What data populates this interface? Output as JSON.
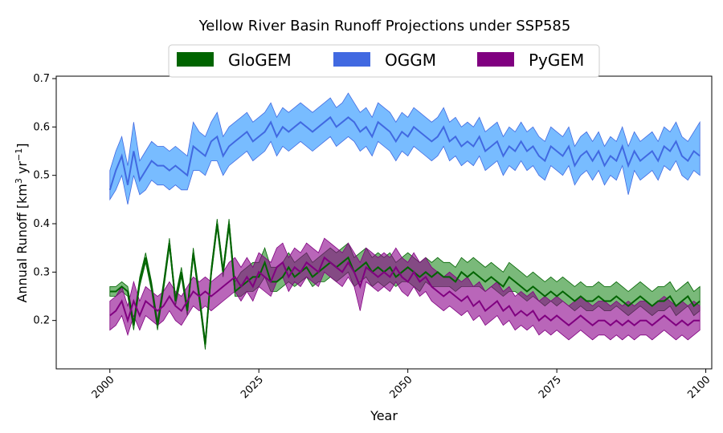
{
  "chart_data": {
    "type": "line",
    "title": "Yellow River Basin Runoff Projections under SSP585",
    "xlabel": "Year",
    "ylabel": "Annual Runoff [km³ yr⁻¹]",
    "ylabel_parts": {
      "main": "Annual Runoff [km",
      "sup1": "3",
      "mid": " yr",
      "sup2": "−1",
      "end": "]"
    },
    "xlim": [
      1991,
      2101
    ],
    "ylim": [
      0.1,
      0.705
    ],
    "x_ticks": [
      2000,
      2025,
      2050,
      2075,
      2100
    ],
    "x_tick_labels": [
      "2000",
      "2025",
      "2050",
      "2075",
      "2100"
    ],
    "y_ticks": [
      0.2,
      0.3,
      0.4,
      0.5,
      0.6,
      0.7
    ],
    "y_tick_labels": [
      "0.2",
      "0.3",
      "0.4",
      "0.5",
      "0.6",
      "0.7"
    ],
    "grid": false,
    "legend_position": "top-center",
    "legend": [
      "GloGEM",
      "OGGM",
      "PyGEM"
    ],
    "colors": {
      "GloGEM_line": "#006400",
      "GloGEM_fill": "#228B22",
      "OGGM_line": "#4169E1",
      "OGGM_fill": "#1E90FF",
      "PyGEM_line": "#800080",
      "PyGEM_fill": "#8B008B"
    },
    "x_start": 2000,
    "x_end": 2099,
    "series": [
      {
        "name": "GloGEM",
        "values": [
          0.26,
          0.26,
          0.27,
          0.26,
          0.19,
          0.28,
          0.33,
          0.27,
          0.19,
          0.27,
          0.36,
          0.24,
          0.3,
          0.22,
          0.34,
          0.25,
          0.15,
          0.3,
          0.4,
          0.3,
          0.4,
          0.26,
          0.27,
          0.28,
          0.29,
          0.29,
          0.32,
          0.28,
          0.28,
          0.29,
          0.31,
          0.29,
          0.3,
          0.31,
          0.29,
          0.3,
          0.31,
          0.32,
          0.31,
          0.32,
          0.33,
          0.3,
          0.31,
          0.32,
          0.3,
          0.31,
          0.3,
          0.31,
          0.29,
          0.3,
          0.31,
          0.3,
          0.29,
          0.3,
          0.29,
          0.3,
          0.29,
          0.29,
          0.28,
          0.3,
          0.29,
          0.3,
          0.29,
          0.28,
          0.29,
          0.28,
          0.27,
          0.29,
          0.28,
          0.27,
          0.26,
          0.27,
          0.26,
          0.25,
          0.26,
          0.25,
          0.26,
          0.25,
          0.24,
          0.25,
          0.24,
          0.24,
          0.25,
          0.24,
          0.24,
          0.25,
          0.24,
          0.23,
          0.24,
          0.25,
          0.24,
          0.23,
          0.24,
          0.24,
          0.25,
          0.23,
          0.24,
          0.25,
          0.23,
          0.24
        ],
        "lower": [
          0.25,
          0.25,
          0.26,
          0.25,
          0.18,
          0.27,
          0.32,
          0.26,
          0.18,
          0.26,
          0.35,
          0.23,
          0.29,
          0.21,
          0.33,
          0.24,
          0.14,
          0.29,
          0.39,
          0.29,
          0.39,
          0.25,
          0.25,
          0.26,
          0.26,
          0.27,
          0.29,
          0.26,
          0.26,
          0.27,
          0.28,
          0.27,
          0.28,
          0.29,
          0.27,
          0.28,
          0.28,
          0.29,
          0.28,
          0.29,
          0.3,
          0.27,
          0.28,
          0.29,
          0.27,
          0.28,
          0.27,
          0.28,
          0.27,
          0.28,
          0.28,
          0.27,
          0.26,
          0.28,
          0.27,
          0.27,
          0.27,
          0.27,
          0.26,
          0.27,
          0.27,
          0.27,
          0.27,
          0.26,
          0.27,
          0.26,
          0.25,
          0.26,
          0.26,
          0.25,
          0.24,
          0.25,
          0.24,
          0.23,
          0.24,
          0.23,
          0.24,
          0.23,
          0.22,
          0.23,
          0.22,
          0.22,
          0.23,
          0.22,
          0.22,
          0.23,
          0.22,
          0.21,
          0.22,
          0.23,
          0.22,
          0.21,
          0.22,
          0.22,
          0.23,
          0.21,
          0.22,
          0.23,
          0.21,
          0.22
        ],
        "upper": [
          0.27,
          0.27,
          0.28,
          0.27,
          0.2,
          0.29,
          0.34,
          0.28,
          0.2,
          0.28,
          0.37,
          0.25,
          0.31,
          0.23,
          0.35,
          0.26,
          0.16,
          0.31,
          0.41,
          0.31,
          0.41,
          0.28,
          0.3,
          0.31,
          0.32,
          0.32,
          0.35,
          0.31,
          0.31,
          0.32,
          0.34,
          0.32,
          0.33,
          0.34,
          0.32,
          0.33,
          0.34,
          0.35,
          0.34,
          0.35,
          0.36,
          0.33,
          0.34,
          0.35,
          0.33,
          0.34,
          0.33,
          0.34,
          0.32,
          0.33,
          0.34,
          0.33,
          0.32,
          0.33,
          0.32,
          0.33,
          0.32,
          0.32,
          0.31,
          0.33,
          0.32,
          0.33,
          0.32,
          0.31,
          0.32,
          0.31,
          0.3,
          0.32,
          0.31,
          0.3,
          0.29,
          0.3,
          0.29,
          0.28,
          0.29,
          0.28,
          0.29,
          0.28,
          0.27,
          0.28,
          0.27,
          0.27,
          0.28,
          0.27,
          0.27,
          0.28,
          0.27,
          0.26,
          0.27,
          0.28,
          0.27,
          0.26,
          0.27,
          0.27,
          0.28,
          0.26,
          0.27,
          0.28,
          0.26,
          0.27
        ]
      },
      {
        "name": "OGGM",
        "values": [
          0.47,
          0.51,
          0.54,
          0.48,
          0.55,
          0.49,
          0.51,
          0.53,
          0.52,
          0.52,
          0.51,
          0.52,
          0.51,
          0.5,
          0.56,
          0.55,
          0.54,
          0.57,
          0.58,
          0.54,
          0.56,
          0.57,
          0.58,
          0.59,
          0.57,
          0.58,
          0.59,
          0.61,
          0.58,
          0.6,
          0.59,
          0.6,
          0.61,
          0.6,
          0.59,
          0.6,
          0.61,
          0.62,
          0.6,
          0.61,
          0.62,
          0.61,
          0.59,
          0.6,
          0.58,
          0.61,
          0.6,
          0.59,
          0.57,
          0.59,
          0.58,
          0.6,
          0.59,
          0.58,
          0.57,
          0.58,
          0.6,
          0.57,
          0.58,
          0.56,
          0.57,
          0.56,
          0.58,
          0.55,
          0.56,
          0.57,
          0.54,
          0.56,
          0.55,
          0.57,
          0.55,
          0.56,
          0.54,
          0.53,
          0.56,
          0.55,
          0.54,
          0.56,
          0.52,
          0.54,
          0.55,
          0.53,
          0.55,
          0.52,
          0.54,
          0.53,
          0.56,
          0.52,
          0.55,
          0.53,
          0.54,
          0.55,
          0.53,
          0.56,
          0.55,
          0.57,
          0.54,
          0.53,
          0.55,
          0.54
        ],
        "lower": [
          0.45,
          0.47,
          0.5,
          0.44,
          0.5,
          0.46,
          0.47,
          0.49,
          0.48,
          0.48,
          0.47,
          0.48,
          0.47,
          0.47,
          0.51,
          0.51,
          0.5,
          0.53,
          0.53,
          0.5,
          0.52,
          0.53,
          0.54,
          0.55,
          0.53,
          0.54,
          0.55,
          0.57,
          0.54,
          0.56,
          0.55,
          0.56,
          0.57,
          0.56,
          0.55,
          0.56,
          0.57,
          0.58,
          0.56,
          0.57,
          0.58,
          0.57,
          0.55,
          0.56,
          0.54,
          0.57,
          0.56,
          0.55,
          0.53,
          0.55,
          0.54,
          0.56,
          0.55,
          0.54,
          0.53,
          0.54,
          0.56,
          0.53,
          0.54,
          0.52,
          0.53,
          0.52,
          0.54,
          0.51,
          0.52,
          0.53,
          0.5,
          0.52,
          0.51,
          0.53,
          0.51,
          0.52,
          0.5,
          0.49,
          0.52,
          0.51,
          0.5,
          0.52,
          0.48,
          0.5,
          0.51,
          0.49,
          0.51,
          0.48,
          0.5,
          0.49,
          0.52,
          0.46,
          0.51,
          0.49,
          0.5,
          0.51,
          0.49,
          0.52,
          0.51,
          0.53,
          0.5,
          0.49,
          0.51,
          0.5
        ],
        "upper": [
          0.51,
          0.55,
          0.58,
          0.52,
          0.61,
          0.53,
          0.55,
          0.57,
          0.56,
          0.56,
          0.55,
          0.56,
          0.55,
          0.54,
          0.61,
          0.59,
          0.58,
          0.61,
          0.63,
          0.58,
          0.6,
          0.61,
          0.62,
          0.63,
          0.61,
          0.62,
          0.63,
          0.65,
          0.62,
          0.64,
          0.63,
          0.64,
          0.65,
          0.64,
          0.63,
          0.64,
          0.65,
          0.66,
          0.64,
          0.65,
          0.67,
          0.65,
          0.63,
          0.64,
          0.62,
          0.65,
          0.64,
          0.63,
          0.61,
          0.63,
          0.62,
          0.64,
          0.63,
          0.62,
          0.61,
          0.62,
          0.64,
          0.61,
          0.62,
          0.6,
          0.61,
          0.6,
          0.62,
          0.59,
          0.6,
          0.61,
          0.58,
          0.6,
          0.59,
          0.61,
          0.59,
          0.6,
          0.58,
          0.57,
          0.6,
          0.59,
          0.58,
          0.6,
          0.56,
          0.58,
          0.59,
          0.57,
          0.59,
          0.56,
          0.58,
          0.57,
          0.6,
          0.56,
          0.59,
          0.57,
          0.58,
          0.59,
          0.57,
          0.6,
          0.59,
          0.61,
          0.58,
          0.57,
          0.59,
          0.61
        ]
      },
      {
        "name": "PyGEM",
        "values": [
          0.21,
          0.22,
          0.24,
          0.2,
          0.24,
          0.21,
          0.24,
          0.23,
          0.22,
          0.23,
          0.25,
          0.23,
          0.22,
          0.24,
          0.26,
          0.25,
          0.26,
          0.25,
          0.26,
          0.27,
          0.28,
          0.29,
          0.27,
          0.29,
          0.27,
          0.3,
          0.29,
          0.28,
          0.31,
          0.32,
          0.29,
          0.31,
          0.3,
          0.32,
          0.31,
          0.3,
          0.33,
          0.32,
          0.31,
          0.3,
          0.32,
          0.3,
          0.27,
          0.31,
          0.3,
          0.29,
          0.3,
          0.29,
          0.31,
          0.29,
          0.28,
          0.3,
          0.28,
          0.29,
          0.27,
          0.26,
          0.25,
          0.26,
          0.25,
          0.24,
          0.25,
          0.23,
          0.24,
          0.22,
          0.23,
          0.24,
          0.22,
          0.23,
          0.21,
          0.22,
          0.21,
          0.22,
          0.2,
          0.21,
          0.2,
          0.21,
          0.2,
          0.19,
          0.2,
          0.21,
          0.2,
          0.19,
          0.2,
          0.2,
          0.19,
          0.2,
          0.19,
          0.2,
          0.19,
          0.2,
          0.2,
          0.19,
          0.2,
          0.21,
          0.2,
          0.19,
          0.2,
          0.19,
          0.2,
          0.2
        ],
        "lower": [
          0.18,
          0.19,
          0.21,
          0.17,
          0.21,
          0.18,
          0.21,
          0.2,
          0.19,
          0.2,
          0.22,
          0.2,
          0.19,
          0.21,
          0.23,
          0.22,
          0.23,
          0.22,
          0.23,
          0.24,
          0.25,
          0.26,
          0.24,
          0.26,
          0.24,
          0.27,
          0.26,
          0.25,
          0.28,
          0.29,
          0.26,
          0.28,
          0.27,
          0.29,
          0.28,
          0.27,
          0.3,
          0.29,
          0.28,
          0.27,
          0.29,
          0.27,
          0.22,
          0.28,
          0.27,
          0.26,
          0.27,
          0.26,
          0.28,
          0.26,
          0.25,
          0.27,
          0.25,
          0.26,
          0.24,
          0.23,
          0.22,
          0.23,
          0.22,
          0.21,
          0.22,
          0.2,
          0.21,
          0.19,
          0.2,
          0.21,
          0.19,
          0.2,
          0.18,
          0.19,
          0.18,
          0.19,
          0.17,
          0.18,
          0.17,
          0.18,
          0.17,
          0.16,
          0.17,
          0.18,
          0.17,
          0.16,
          0.17,
          0.17,
          0.16,
          0.17,
          0.16,
          0.17,
          0.16,
          0.17,
          0.17,
          0.16,
          0.17,
          0.18,
          0.17,
          0.16,
          0.17,
          0.16,
          0.17,
          0.18
        ],
        "upper": [
          0.24,
          0.25,
          0.27,
          0.23,
          0.28,
          0.24,
          0.27,
          0.26,
          0.25,
          0.26,
          0.28,
          0.26,
          0.25,
          0.27,
          0.29,
          0.28,
          0.29,
          0.28,
          0.29,
          0.3,
          0.32,
          0.33,
          0.31,
          0.33,
          0.31,
          0.34,
          0.33,
          0.32,
          0.35,
          0.36,
          0.33,
          0.35,
          0.34,
          0.36,
          0.35,
          0.34,
          0.37,
          0.36,
          0.35,
          0.34,
          0.36,
          0.34,
          0.32,
          0.35,
          0.34,
          0.33,
          0.34,
          0.33,
          0.35,
          0.33,
          0.32,
          0.34,
          0.32,
          0.33,
          0.31,
          0.3,
          0.29,
          0.3,
          0.29,
          0.28,
          0.29,
          0.27,
          0.28,
          0.26,
          0.27,
          0.28,
          0.26,
          0.27,
          0.25,
          0.26,
          0.25,
          0.26,
          0.24,
          0.25,
          0.24,
          0.25,
          0.24,
          0.23,
          0.24,
          0.25,
          0.24,
          0.23,
          0.24,
          0.24,
          0.23,
          0.24,
          0.23,
          0.24,
          0.23,
          0.24,
          0.24,
          0.23,
          0.24,
          0.25,
          0.24,
          0.23,
          0.24,
          0.23,
          0.24,
          0.23
        ]
      }
    ]
  }
}
